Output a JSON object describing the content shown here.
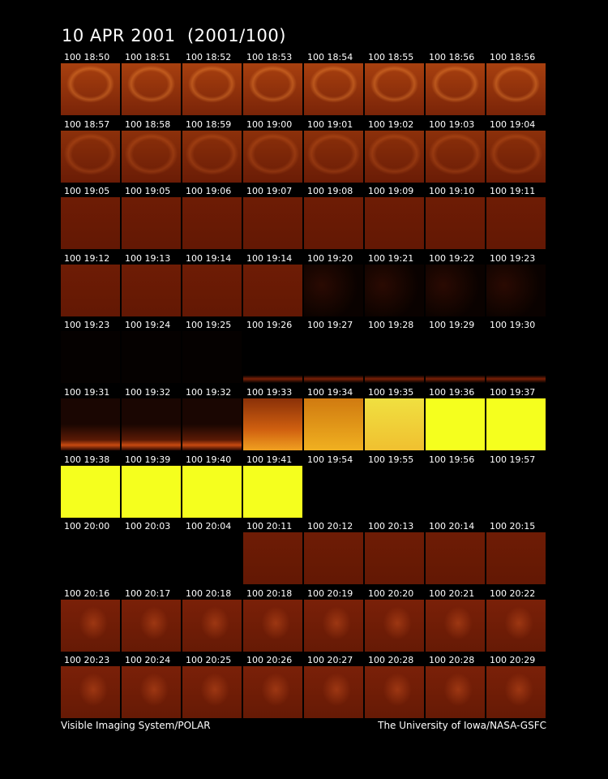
{
  "header": {
    "title": "10 APR 2001  (2001/100)"
  },
  "grid": {
    "rows": [
      [
        "100 18:50",
        "100 18:51",
        "100 18:52",
        "100 18:53",
        "100 18:54",
        "100 18:55",
        "100 18:56",
        "100 18:56"
      ],
      [
        "100 18:57",
        "100 18:58",
        "100 18:59",
        "100 19:00",
        "100 19:01",
        "100 19:02",
        "100 19:03",
        "100 19:04"
      ],
      [
        "100 19:05",
        "100 19:05",
        "100 19:06",
        "100 19:07",
        "100 19:08",
        "100 19:09",
        "100 19:10",
        "100 19:11"
      ],
      [
        "100 19:12",
        "100 19:13",
        "100 19:14",
        "100 19:14",
        "100 19:20",
        "100 19:21",
        "100 19:22",
        "100 19:23"
      ],
      [
        "100 19:23",
        "100 19:24",
        "100 19:25",
        "100 19:26",
        "100 19:27",
        "100 19:28",
        "100 19:29",
        "100 19:30"
      ],
      [
        "100 19:31",
        "100 19:32",
        "100 19:32",
        "100 19:33",
        "100 19:34",
        "100 19:35",
        "100 19:36",
        "100 19:37"
      ],
      [
        "100 19:38",
        "100 19:39",
        "100 19:40",
        "100 19:41",
        "100 19:54",
        "100 19:55",
        "100 19:56",
        "100 19:57"
      ],
      [
        "100 20:00",
        "100 20:03",
        "100 20:04",
        "100 20:11",
        "100 20:12",
        "100 20:13",
        "100 20:14",
        "100 20:15"
      ],
      [
        "100 20:16",
        "100 20:17",
        "100 20:18",
        "100 20:18",
        "100 20:19",
        "100 20:20",
        "100 20:21",
        "100 20:22"
      ],
      [
        "100 20:23",
        "100 20:24",
        "100 20:25",
        "100 20:26",
        "100 20:27",
        "100 20:28",
        "100 20:28",
        "100 20:29"
      ]
    ]
  },
  "footer": {
    "left": "Visible Imaging System/POLAR",
    "right": "The University of Iowa/NASA-GSFC"
  }
}
